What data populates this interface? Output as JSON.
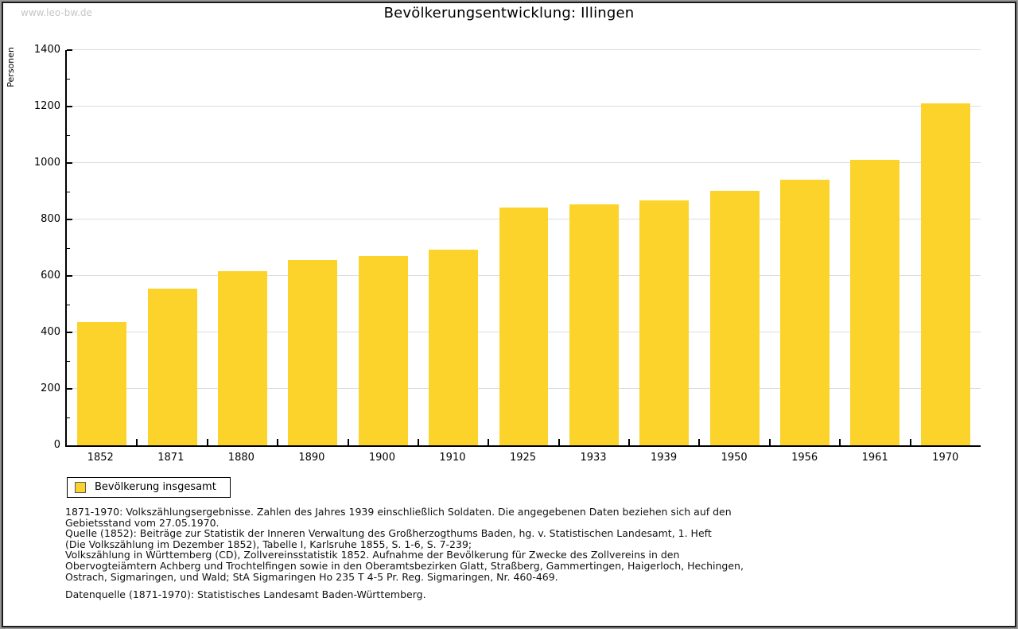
{
  "watermark": "www.leo-bw.de",
  "chart_data": {
    "type": "bar",
    "title": "Bevölkerungsentwicklung: Illingen",
    "xlabel": "",
    "ylabel": "Personen",
    "ylim": [
      0,
      1400
    ],
    "ytick_step": 200,
    "ytick_minor_step": 100,
    "grid": true,
    "legend_position": "bottom-left",
    "categories": [
      "1852",
      "1871",
      "1880",
      "1890",
      "1900",
      "1910",
      "1925",
      "1933",
      "1939",
      "1950",
      "1956",
      "1961",
      "1970"
    ],
    "series": [
      {
        "name": "Bevölkerung insgesamt",
        "color": "#FCD32B",
        "values": [
          438,
          554,
          616,
          656,
          671,
          692,
          841,
          853,
          867,
          901,
          942,
          1010,
          1210
        ]
      }
    ]
  },
  "legend": {
    "label": "Bevölkerung insgesamt",
    "swatch_color": "#FCD32B"
  },
  "footnotes": {
    "lines": [
      "1871-1970: Volkszählungsergebnisse. Zahlen des Jahres 1939 einschließlich Soldaten. Die angegebenen Daten beziehen sich auf den",
      "Gebietsstand vom 27.05.1970.",
      "Quelle (1852): Beiträge zur Statistik der Inneren Verwaltung des Großherzogthums Baden, hg. v. Statistischen Landesamt, 1. Heft",
      "(Die Volkszählung im Dezember 1852), Tabelle I, Karlsruhe 1855, S. 1-6, S. 7-239;",
      "Volkszählung in Württemberg (CD), Zollvereinsstatistik 1852. Aufnahme der Bevölkerung für Zwecke des Zollvereins in den",
      "Obervogteiämtern Achberg und Trochtelfingen sowie in den Oberamtsbezirken Glatt, Straßberg, Gammertingen, Haigerloch, Hechingen,",
      "Ostrach, Sigmaringen, und Wald; StA Sigmaringen Ho 235 T 4-5 Pr. Reg. Sigmaringen, Nr. 460-469."
    ],
    "datasource": "Datenquelle (1871-1970): Statistisches Landesamt Baden-Württemberg."
  },
  "colors": {
    "bar": "#FCD32B",
    "gridline": "#DCDCDC",
    "axis": "#000000",
    "watermark": "#C6C6C6",
    "frame_outer": "#979797",
    "frame_inner": "#1B1B1B"
  }
}
